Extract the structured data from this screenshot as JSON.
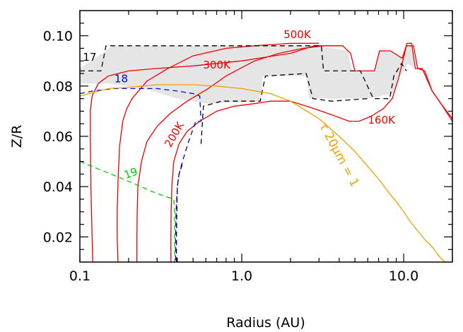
{
  "chart_data": {
    "type": "line",
    "xlabel": "Radius (AU)",
    "ylabel": "Z/R",
    "xscale": "log",
    "xlim": [
      0.1,
      20
    ],
    "ylim": [
      0.01,
      0.11
    ],
    "xticks": [
      {
        "value": 0.1,
        "label": "0.1"
      },
      {
        "value": 1.0,
        "label": "1.0"
      },
      {
        "value": 10.0,
        "label": "10.0"
      }
    ],
    "yticks": [
      {
        "value": 0.02,
        "label": "0.02"
      },
      {
        "value": 0.04,
        "label": "0.04"
      },
      {
        "value": 0.06,
        "label": "0.06"
      },
      {
        "value": 0.08,
        "label": "0.08"
      },
      {
        "value": 0.1,
        "label": "0.10"
      }
    ],
    "colors": {
      "temperature": "#ee0000",
      "contour_17": "#000000",
      "contour_18": "#0000dd",
      "contour_19": "#00cc00",
      "tau": "#f0a000",
      "shade": "#e5e5e5"
    },
    "shaded_region": {
      "upper": [
        [
          0.1,
          0.087
        ],
        [
          0.16,
          0.096
        ],
        [
          3,
          0.096
        ],
        [
          4.5,
          0.094
        ],
        [
          4.8,
          0.086
        ],
        [
          6.6,
          0.086
        ],
        [
          7,
          0.094
        ],
        [
          8.3,
          0.094
        ],
        [
          9.8,
          0.091
        ],
        [
          10.3,
          0.096
        ],
        [
          11.2,
          0.096
        ],
        [
          11.6,
          0.087
        ]
      ],
      "lower": [
        [
          11.6,
          0.087
        ],
        [
          10.6,
          0.089
        ],
        [
          9.3,
          0.083
        ],
        [
          8.6,
          0.077
        ],
        [
          6,
          0.075
        ],
        [
          2.6,
          0.075
        ],
        [
          2.5,
          0.084
        ],
        [
          1.35,
          0.084
        ],
        [
          1.3,
          0.074
        ],
        [
          0.62,
          0.073
        ],
        [
          0.4,
          0.075
        ],
        [
          0.25,
          0.079
        ],
        [
          0.15,
          0.081
        ],
        [
          0.1,
          0.081
        ]
      ]
    },
    "series": [
      {
        "color": "#ee0000",
        "points": [
          [
            0.12,
            0.01
          ],
          [
            0.119,
            0.02
          ],
          [
            0.117,
            0.04
          ],
          [
            0.116,
            0.06
          ],
          [
            0.116,
            0.07
          ],
          [
            0.119,
            0.076
          ],
          [
            0.13,
            0.081
          ],
          [
            0.15,
            0.084
          ],
          [
            0.2,
            0.086
          ],
          [
            0.3,
            0.087
          ],
          [
            0.5,
            0.088
          ],
          [
            1,
            0.09
          ],
          [
            2,
            0.093
          ],
          [
            2.8,
            0.096
          ],
          [
            4,
            0.096
          ]
        ]
      },
      {
        "color": "#ee0000",
        "points": [
          [
            0.172,
            0.01
          ],
          [
            0.17,
            0.02
          ],
          [
            0.17,
            0.03
          ],
          [
            0.172,
            0.042
          ],
          [
            0.176,
            0.056
          ],
          [
            0.184,
            0.066
          ],
          [
            0.195,
            0.071
          ],
          [
            0.21,
            0.075
          ],
          [
            0.26,
            0.082
          ],
          [
            0.35,
            0.087
          ],
          [
            0.5,
            0.092
          ],
          [
            0.8,
            0.095
          ],
          [
            1.2,
            0.096
          ],
          [
            2,
            0.097
          ],
          [
            3,
            0.097
          ]
        ]
      },
      {
        "color": "#ee0000",
        "points": [
          [
            0.225,
            0.01
          ],
          [
            0.225,
            0.02
          ],
          [
            0.226,
            0.03
          ],
          [
            0.228,
            0.04
          ],
          [
            0.24,
            0.05
          ],
          [
            0.26,
            0.058
          ],
          [
            0.3,
            0.064
          ],
          [
            0.36,
            0.069
          ],
          [
            0.46,
            0.074
          ],
          [
            0.62,
            0.079
          ],
          [
            0.8,
            0.084
          ],
          [
            1.2,
            0.09
          ],
          [
            1.7,
            0.093
          ],
          [
            2.4,
            0.095
          ],
          [
            3.2,
            0.096
          ],
          [
            4.2,
            0.096
          ],
          [
            4.7,
            0.093
          ],
          [
            5,
            0.086
          ],
          [
            6.6,
            0.086
          ],
          [
            7.1,
            0.094
          ],
          [
            8.3,
            0.094
          ],
          [
            9.8,
            0.091
          ],
          [
            10.5,
            0.097
          ],
          [
            11.2,
            0.097
          ],
          [
            11.8,
            0.087
          ],
          [
            13,
            0.087
          ],
          [
            15,
            0.078
          ],
          [
            17,
            0.073
          ],
          [
            20,
            0.067
          ]
        ]
      },
      {
        "color": "#ee0000",
        "points": [
          [
            0.365,
            0.01
          ],
          [
            0.365,
            0.02
          ],
          [
            0.366,
            0.03
          ],
          [
            0.37,
            0.04
          ],
          [
            0.38,
            0.05
          ],
          [
            0.41,
            0.057
          ],
          [
            0.46,
            0.062
          ],
          [
            0.55,
            0.066
          ],
          [
            0.7,
            0.07
          ],
          [
            0.9,
            0.072
          ],
          [
            1.2,
            0.073
          ],
          [
            1.5,
            0.074
          ],
          [
            2,
            0.074
          ],
          [
            2.8,
            0.071
          ],
          [
            3.8,
            0.068
          ],
          [
            4.6,
            0.066
          ],
          [
            5.3,
            0.066
          ],
          [
            6.3,
            0.068
          ],
          [
            7.5,
            0.071
          ],
          [
            8.5,
            0.075
          ],
          [
            9.3,
            0.083
          ],
          [
            10.4,
            0.096
          ],
          [
            11.5,
            0.096
          ],
          [
            12.2,
            0.087
          ],
          [
            13.5,
            0.086
          ],
          [
            15,
            0.078
          ],
          [
            17,
            0.073
          ],
          [
            20,
            0.066
          ]
        ]
      },
      {
        "color": "#000000",
        "dashed": true,
        "points": [
          [
            0.1,
            0.086
          ],
          [
            0.135,
            0.086
          ],
          [
            0.145,
            0.096
          ],
          [
            3.1,
            0.096
          ],
          [
            3.2,
            0.086
          ],
          [
            4.6,
            0.086
          ],
          [
            5,
            0.086
          ],
          [
            5.4,
            0.086
          ],
          [
            6.5,
            0.075
          ],
          [
            8.2,
            0.075
          ],
          [
            8.7,
            0.084
          ],
          [
            9.7,
            0.089
          ],
          [
            10.4,
            0.086
          ]
        ]
      },
      {
        "color": "#000000",
        "dashed": true,
        "points": [
          [
            0.56,
            0.057
          ],
          [
            0.58,
            0.072
          ],
          [
            0.75,
            0.074
          ],
          [
            1.3,
            0.074
          ],
          [
            1.4,
            0.084
          ],
          [
            2.5,
            0.085
          ],
          [
            2.75,
            0.075
          ],
          [
            3.6,
            0.074
          ],
          [
            6,
            0.075
          ]
        ]
      },
      {
        "color": "#000000",
        "dashed": true,
        "points": [
          [
            0.395,
            0.01
          ],
          [
            0.395,
            0.02
          ],
          [
            0.397,
            0.03
          ],
          [
            0.4,
            0.04
          ],
          [
            0.41,
            0.045
          ],
          [
            0.43,
            0.049
          ]
        ]
      },
      {
        "color": "#0000dd",
        "dashed": true,
        "points": [
          [
            0.1,
            0.077
          ],
          [
            0.12,
            0.078
          ],
          [
            0.16,
            0.079
          ],
          [
            0.22,
            0.079
          ],
          [
            0.3,
            0.079
          ],
          [
            0.4,
            0.078
          ],
          [
            0.5,
            0.077
          ],
          [
            0.55,
            0.076
          ],
          [
            0.56,
            0.066
          ],
          [
            0.52,
            0.066
          ],
          [
            0.47,
            0.058
          ],
          [
            0.43,
            0.05
          ],
          [
            0.41,
            0.045
          ],
          [
            0.4,
            0.04
          ],
          [
            0.393,
            0.03
          ],
          [
            0.39,
            0.02
          ],
          [
            0.39,
            0.01
          ]
        ]
      },
      {
        "color": "#00cc00",
        "dashed": true,
        "points": [
          [
            0.1,
            0.05
          ],
          [
            0.13,
            0.047
          ],
          [
            0.17,
            0.044
          ],
          [
            0.22,
            0.041
          ],
          [
            0.28,
            0.038
          ],
          [
            0.34,
            0.036
          ],
          [
            0.38,
            0.035
          ],
          [
            0.385,
            0.03
          ],
          [
            0.385,
            0.02
          ],
          [
            0.385,
            0.01
          ]
        ]
      },
      {
        "color": "#f0a000",
        "points": [
          [
            0.1,
            0.076
          ],
          [
            0.15,
            0.079
          ],
          [
            0.2,
            0.0795
          ],
          [
            0.3,
            0.0805
          ],
          [
            0.4,
            0.0805
          ],
          [
            0.5,
            0.0805
          ],
          [
            0.7,
            0.08
          ],
          [
            1,
            0.079
          ],
          [
            1.5,
            0.077
          ],
          [
            2,
            0.074
          ],
          [
            3,
            0.067
          ],
          [
            4,
            0.06
          ],
          [
            5,
            0.054
          ],
          [
            6,
            0.048
          ],
          [
            7,
            0.043
          ],
          [
            8,
            0.038
          ],
          [
            9,
            0.034
          ],
          [
            10,
            0.03
          ],
          [
            11,
            0.026
          ],
          [
            12,
            0.023
          ],
          [
            13.5,
            0.019
          ],
          [
            15,
            0.016
          ],
          [
            16.7,
            0.012
          ],
          [
            18,
            0.01
          ]
        ]
      }
    ],
    "annotations": [
      {
        "text": "500K",
        "x": 2.2,
        "y": 0.099,
        "color": "#ee0000"
      },
      {
        "text": "300K",
        "x": 0.7,
        "y": 0.087,
        "color": "#ee0000"
      },
      {
        "text": "200K",
        "x": 0.4,
        "y": 0.06,
        "color": "#ee0000",
        "rotate": -60
      },
      {
        "text": "160K",
        "x": 7.3,
        "y": 0.065,
        "color": "#ee0000"
      },
      {
        "text": "17",
        "x": 0.115,
        "y": 0.09,
        "color": "#000000"
      },
      {
        "text": "18",
        "x": 0.18,
        "y": 0.0815,
        "color": "#0000dd"
      },
      {
        "text": "19",
        "x": 0.21,
        "y": 0.044,
        "color": "#00cc00",
        "rotate": -20
      },
      {
        "text": "τ 20μm = 1",
        "x": 3.8,
        "y": 0.052,
        "color": "#f0a000",
        "rotate": 62
      }
    ]
  }
}
